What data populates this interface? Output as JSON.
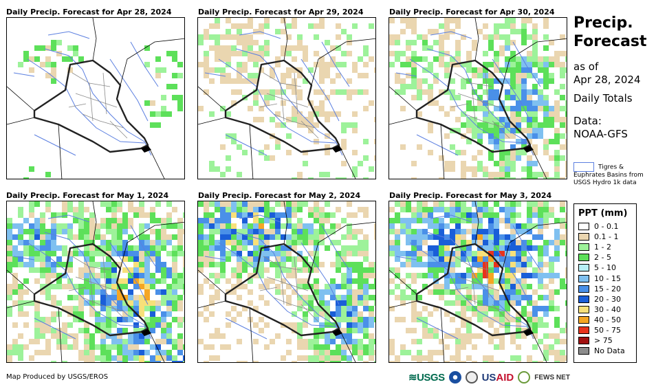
{
  "panels": [
    {
      "title": "Daily Precip. Forecast for Apr 28, 2024",
      "scene": "dry"
    },
    {
      "title": "Daily Precip. Forecast for Apr 29, 2024",
      "scene": "light"
    },
    {
      "title": "Daily Precip. Forecast for Apr 30, 2024",
      "scene": "moderate"
    },
    {
      "title": "Daily Precip. Forecast for May 1, 2024",
      "scene": "wet_se"
    },
    {
      "title": "Daily Precip. Forecast for May 2, 2024",
      "scene": "wet_north"
    },
    {
      "title": "Daily Precip. Forecast for May 3, 2024",
      "scene": "storm"
    }
  ],
  "side": {
    "title_line1": "Precip.",
    "title_line2": "Forecast",
    "as_of": "as of",
    "date": "Apr 28, 2024",
    "totals": "Daily Totals",
    "data_label": "Data:",
    "data_source": "NOAA-GFS",
    "basin_note_1": "Tigres &",
    "basin_note_2": "Euphrates Basins from",
    "basin_note_3": "USGS Hydro 1k data"
  },
  "legend": {
    "title": "PPT (mm)",
    "items": [
      {
        "label": "0 - 0.1",
        "color": "#ffffff"
      },
      {
        "label": "0.1 - 1",
        "color": "#ead6b0"
      },
      {
        "label": "1 - 2",
        "color": "#9df29a"
      },
      {
        "label": "2 - 5",
        "color": "#5de05a"
      },
      {
        "label": "5 - 10",
        "color": "#b7f0f6"
      },
      {
        "label": "10 - 15",
        "color": "#7fc0f0"
      },
      {
        "label": "15 - 20",
        "color": "#4a90e8"
      },
      {
        "label": "20 - 30",
        "color": "#1a5ed8"
      },
      {
        "label": "30 - 40",
        "color": "#f7e07a"
      },
      {
        "label": "40 - 50",
        "color": "#f5a623"
      },
      {
        "label": "50 - 75",
        "color": "#e8331c"
      },
      {
        "label": "> 75",
        "color": "#a01010"
      },
      {
        "label": "No Data",
        "color": "#8c8c8c"
      }
    ]
  },
  "footer": {
    "credit": "Map Produced by USGS/EROS",
    "usgs": "≋USGS",
    "usaid_a": "US",
    "usaid_b": "AID",
    "fews": "FEWS NET"
  }
}
